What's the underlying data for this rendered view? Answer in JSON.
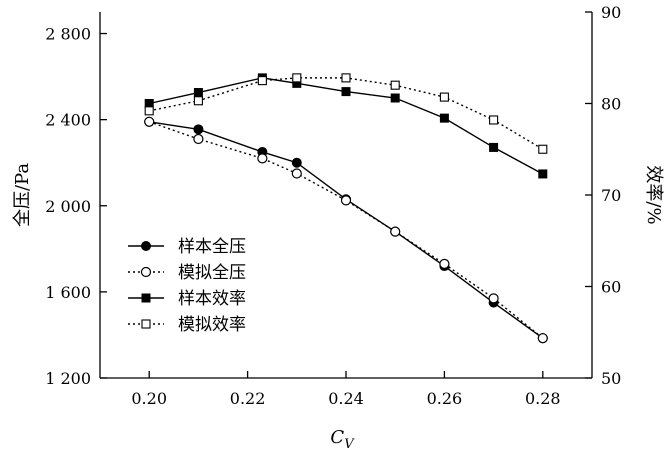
{
  "chart_data": {
    "type": "line",
    "x": [
      0.2,
      0.21,
      0.22,
      0.23,
      0.24,
      0.25,
      0.26,
      0.27,
      0.28
    ],
    "x_tick_labels": [
      "0.20",
      "0.22",
      "0.24",
      "0.26",
      "0.28"
    ],
    "x_tick_values": [
      0.2,
      0.22,
      0.24,
      0.26,
      0.28
    ],
    "xlabel": "C",
    "xlabel_sub": "V",
    "xlim": [
      0.19,
      0.29
    ],
    "ylabel_left": "全压/Pa",
    "ylim_left": [
      1200,
      2900
    ],
    "y_left_tick_values": [
      1200,
      1600,
      2000,
      2400,
      2800
    ],
    "y_left_tick_labels": [
      "1 200",
      "1 600",
      "2 000",
      "2 400",
      "2 800"
    ],
    "ylabel_right": "效率/%",
    "ylim_right": [
      50,
      90
    ],
    "y_right_tick_values": [
      50,
      60,
      70,
      80,
      90
    ],
    "y_right_tick_labels": [
      "50",
      "60",
      "70",
      "80",
      "90"
    ],
    "grid": false,
    "legend_position": "lower-left",
    "series": [
      {
        "name": "样本全压",
        "axis": "left",
        "line": "solid",
        "marker": "filled-circle",
        "x": [
          0.2,
          0.21,
          0.223,
          0.23,
          0.24,
          0.25,
          0.26,
          0.27,
          0.28
        ],
        "values": [
          2390,
          2355,
          2250,
          2200,
          2030,
          1880,
          1720,
          1550,
          1385
        ]
      },
      {
        "name": "模拟全压",
        "axis": "left",
        "line": "dotted",
        "marker": "open-circle",
        "x": [
          0.2,
          0.21,
          0.223,
          0.23,
          0.24,
          0.25,
          0.26,
          0.27,
          0.28
        ],
        "values": [
          2390,
          2310,
          2220,
          2150,
          2025,
          1880,
          1730,
          1570,
          1385
        ]
      },
      {
        "name": "样本效率",
        "axis": "right",
        "line": "solid",
        "marker": "filled-square",
        "x": [
          0.2,
          0.21,
          0.223,
          0.23,
          0.24,
          0.25,
          0.26,
          0.27,
          0.28
        ],
        "values": [
          80.0,
          81.2,
          82.8,
          82.2,
          81.3,
          80.6,
          78.4,
          75.2,
          72.3
        ]
      },
      {
        "name": "模拟效率",
        "axis": "right",
        "line": "dotted",
        "marker": "open-square",
        "x": [
          0.2,
          0.21,
          0.223,
          0.23,
          0.24,
          0.25,
          0.26,
          0.27,
          0.28
        ],
        "values": [
          79.2,
          80.3,
          82.5,
          82.8,
          82.8,
          82.0,
          80.7,
          78.2,
          75.0
        ]
      }
    ]
  }
}
